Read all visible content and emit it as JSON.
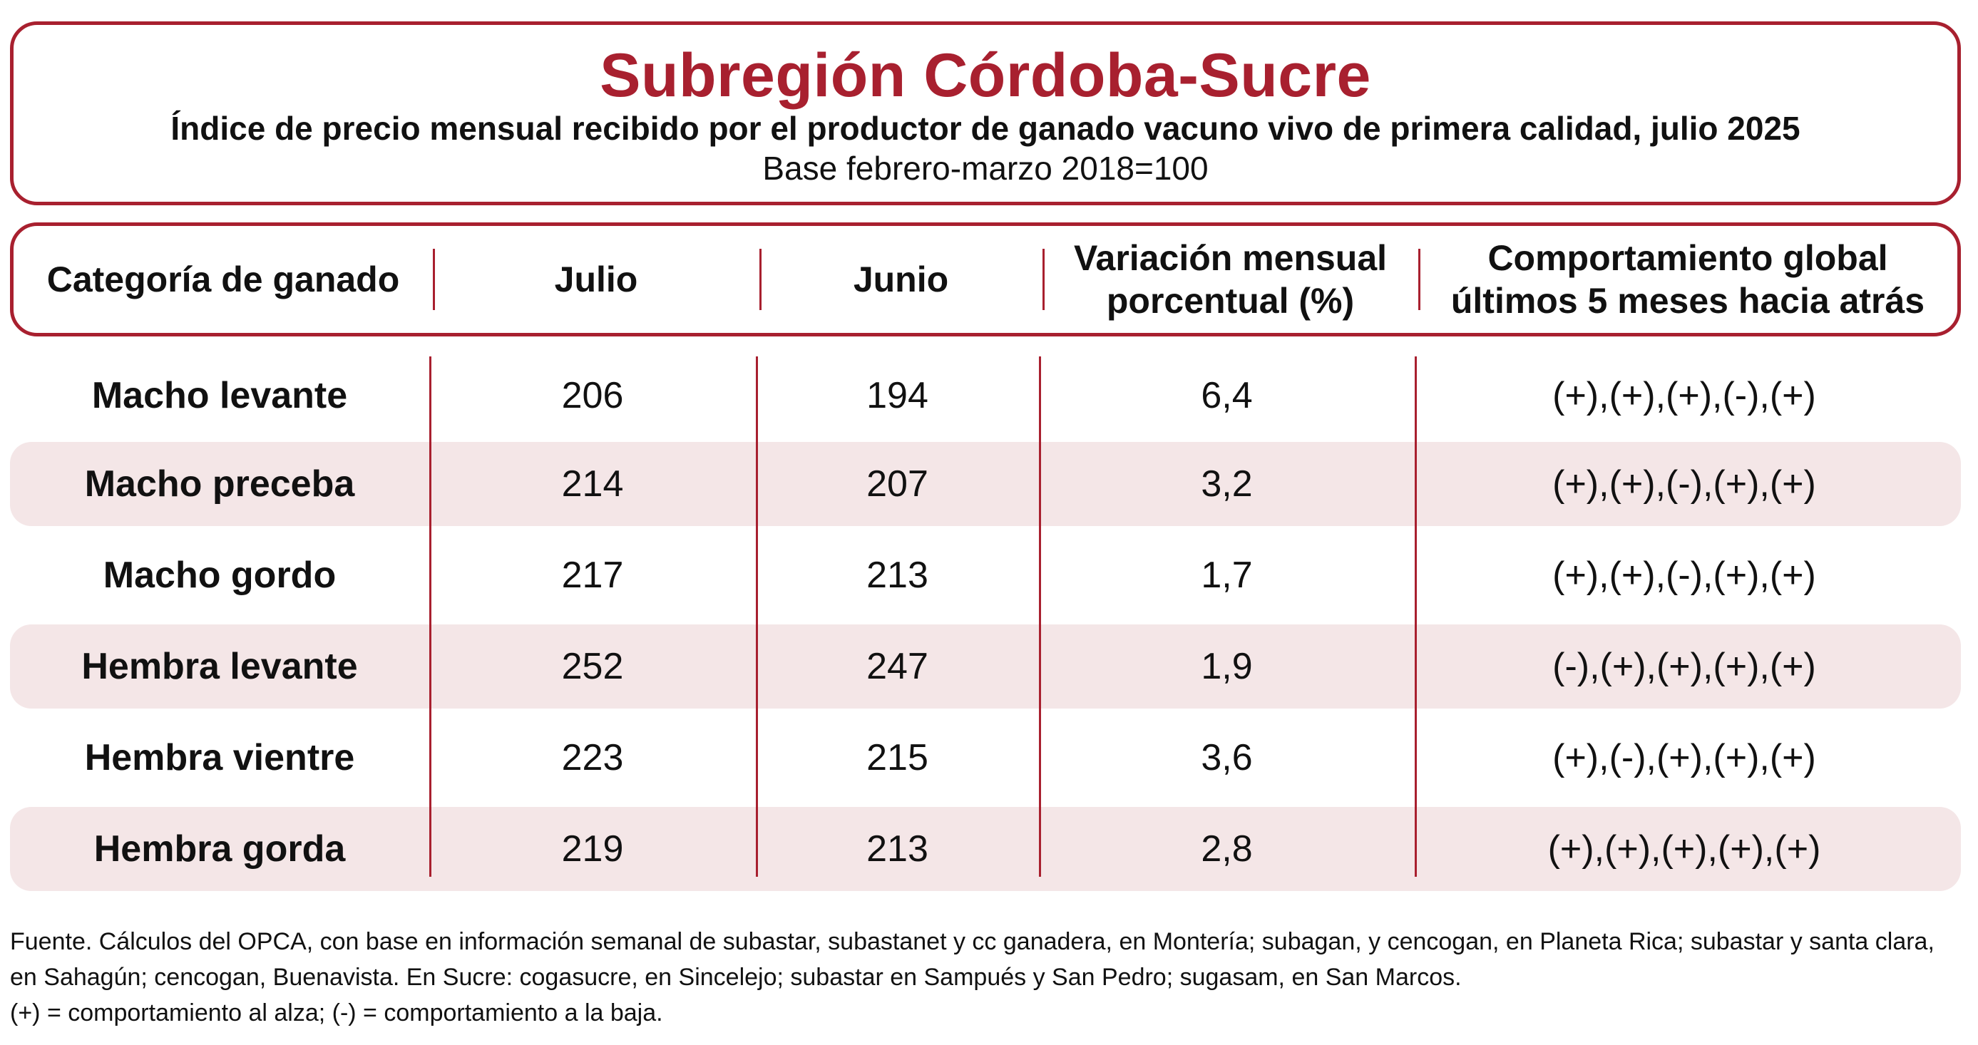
{
  "title": "Subregión Córdoba-Sucre",
  "subtitle": "Índice de precio mensual recibido por el productor de ganado vacuno vivo de primera calidad, julio 2025",
  "base": "Base febrero-marzo 2018=100",
  "colors": {
    "accent": "#a8202f",
    "row_shade": "#f4e6e7"
  },
  "table": {
    "headers": [
      "Categoría de ganado",
      "Julio",
      "Junio",
      "Variación mensual\nporcentual (%)",
      "Comportamiento global\núltimos 5 meses hacia atrás"
    ],
    "rows": [
      {
        "categoria": "Macho levante",
        "julio": "206",
        "junio": "194",
        "variacion": "6,4",
        "comportamiento": "(+),(+),(+),(-),(+)"
      },
      {
        "categoria": "Macho preceba",
        "julio": "214",
        "junio": "207",
        "variacion": "3,2",
        "comportamiento": "(+),(+),(-),(+),(+)"
      },
      {
        "categoria": "Macho gordo",
        "julio": "217",
        "junio": "213",
        "variacion": "1,7",
        "comportamiento": "(+),(+),(-),(+),(+)"
      },
      {
        "categoria": "Hembra levante",
        "julio": "252",
        "junio": "247",
        "variacion": "1,9",
        "comportamiento": "(-),(+),(+),(+),(+)"
      },
      {
        "categoria": "Hembra vientre",
        "julio": "223",
        "junio": "215",
        "variacion": "3,6",
        "comportamiento": "(+),(-),(+),(+),(+)"
      },
      {
        "categoria": "Hembra gorda",
        "julio": "219",
        "junio": "213",
        "variacion": "2,8",
        "comportamiento": "(+),(+),(+),(+),(+)"
      }
    ]
  },
  "footnote": [
    "Fuente. Cálculos del OPCA, con base en información semanal de subastar, subastanet y cc ganadera, en Montería; subagan, y cencogan, en Planeta Rica; subastar y santa clara,",
    "en Sahagún; cencogan, Buenavista. En Sucre: cogasucre, en Sincelejo; subastar en Sampués y San Pedro; sugasam, en San Marcos.",
    "(+) = comportamiento al alza; (-) = comportamiento a la baja."
  ]
}
